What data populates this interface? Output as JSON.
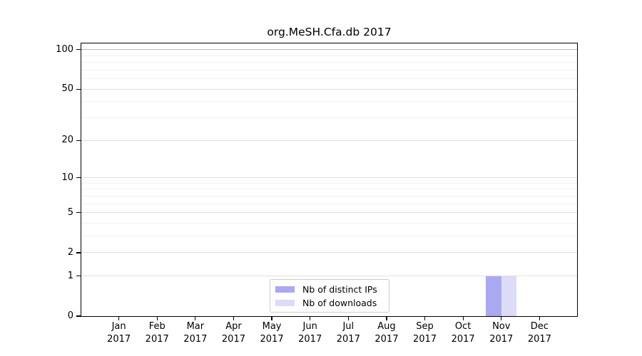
{
  "chart_data": {
    "type": "bar",
    "title": "org.MeSH.Cfa.db 2017",
    "categories": [
      "Jan 2017",
      "Feb 2017",
      "Mar 2017",
      "Apr 2017",
      "May 2017",
      "Jun 2017",
      "Jul 2017",
      "Aug 2017",
      "Sep 2017",
      "Oct 2017",
      "Nov 2017",
      "Dec 2017"
    ],
    "series": [
      {
        "name": "Nb of distinct IPs",
        "color": "#a9a9f2",
        "values": [
          0,
          0,
          0,
          0,
          0,
          0,
          0,
          0,
          0,
          0,
          1,
          0
        ]
      },
      {
        "name": "Nb of downloads",
        "color": "#dcdcf8",
        "values": [
          0,
          0,
          0,
          0,
          0,
          0,
          0,
          0,
          0,
          0,
          1,
          0
        ]
      }
    ],
    "xlabel": "",
    "ylabel": "",
    "y_ticks": [
      0,
      1,
      2,
      5,
      10,
      20,
      50,
      100
    ],
    "y_minor_ticks": [
      3,
      4,
      6,
      7,
      8,
      9,
      30,
      40,
      60,
      70,
      80,
      90
    ],
    "scale": "log1p",
    "ylim": [
      0,
      113
    ],
    "grid": "horizontal-only",
    "legend_position": "bottom-center"
  },
  "colors": {
    "gridline_top": "#b9b9b9",
    "gridline_major": "#e0e0e0",
    "gridline_minor": "#f1f1f1",
    "axis": "#000000",
    "legend_border": "#cccccc",
    "background": "#ffffff"
  }
}
